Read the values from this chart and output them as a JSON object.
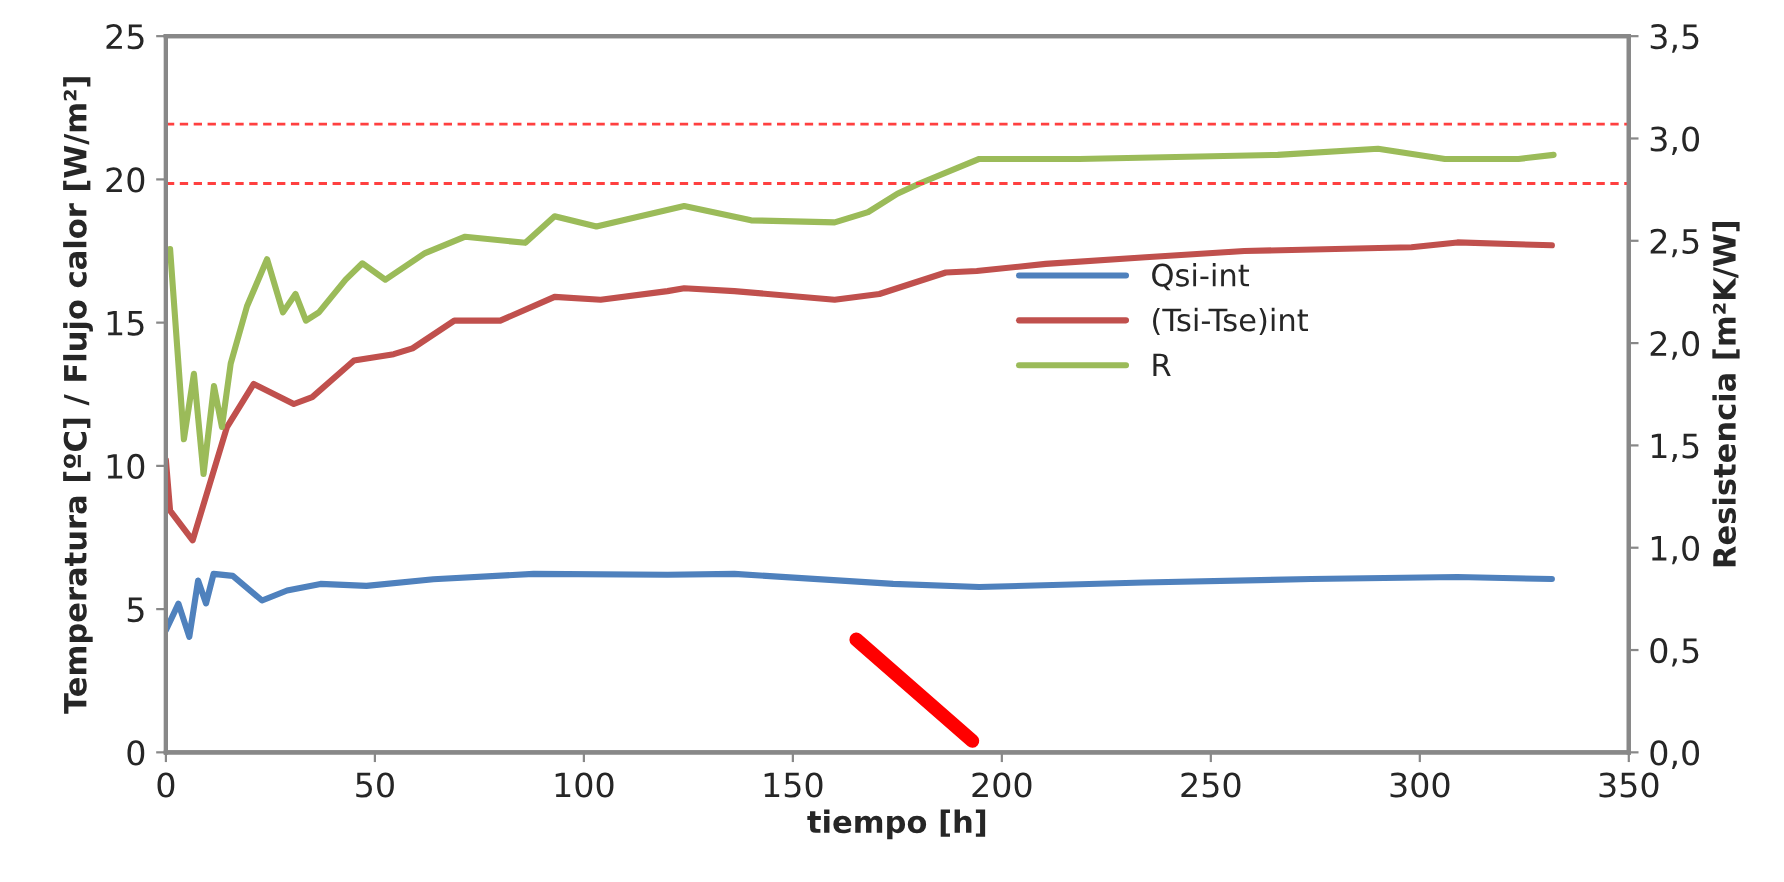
{
  "chart_data": {
    "type": "line",
    "xlabel": "tiempo [h]",
    "ylabel": "Temperatura [ºC] / Flujo calor [W/m²]",
    "y2label": "Resistencia [m²K/W]",
    "xlim": [
      0,
      350
    ],
    "xticks": [
      0,
      50,
      100,
      150,
      200,
      250,
      300,
      350
    ],
    "ylim": [
      0,
      25
    ],
    "yticks": [
      0,
      5,
      10,
      15,
      20,
      25
    ],
    "y2lim": [
      0,
      3.5
    ],
    "y2ticks": [
      {
        "value": 0,
        "label": "0,0"
      },
      {
        "value": 0.5,
        "label": "0,5"
      },
      {
        "value": 1,
        "label": "1,0"
      },
      {
        "value": 1.5,
        "label": "1,5"
      },
      {
        "value": 2,
        "label": "2,0"
      },
      {
        "value": 2.5,
        "label": "2,5"
      },
      {
        "value": 3,
        "label": "3,0"
      },
      {
        "value": 3.5,
        "label": "3,5"
      }
    ],
    "grid": false,
    "legend": "right",
    "line_style": "solid",
    "marker": "none",
    "series": [
      {
        "name": "Qsi-int",
        "color": "#4f81bd",
        "x": [
          0,
          3,
          5.6,
          7.7,
          9.6,
          11.4,
          16,
          23,
          29,
          37,
          48,
          64,
          88,
          120,
          136,
          174,
          194.6,
          234,
          274,
          309,
          331.6
        ],
        "values": [
          4.26,
          5.19,
          4.03,
          6.0,
          5.2,
          6.23,
          6.16,
          5.3,
          5.65,
          5.88,
          5.81,
          6.04,
          6.23,
          6.2,
          6.23,
          5.88,
          5.77,
          5.93,
          6.05,
          6.12,
          6.05
        ]
      },
      {
        "name": "(Tsi-Tse)int",
        "color": "#c0504d",
        "x": [
          0,
          1,
          6.4,
          14.6,
          21,
          30.6,
          35,
          45,
          54.5,
          59,
          69,
          80,
          93,
          104,
          120,
          124,
          136,
          160,
          170.7,
          186.6,
          194,
          210.5,
          234.4,
          258,
          298,
          309,
          331.6
        ],
        "values": [
          10.2,
          8.44,
          7.4,
          11.35,
          12.86,
          12.16,
          12.4,
          13.68,
          13.9,
          14.1,
          15.07,
          15.07,
          15.9,
          15.8,
          16.1,
          16.2,
          16.1,
          15.8,
          16.0,
          16.75,
          16.8,
          17.05,
          17.28,
          17.5,
          17.63,
          17.8,
          17.7
        ]
      },
      {
        "name": "R",
        "color": "#9bbb59",
        "axis": "y2",
        "x": [
          1,
          4.3,
          6.7,
          9,
          11.5,
          13.4,
          15.5,
          19.4,
          24.2,
          28,
          31,
          33.5,
          36.6,
          43,
          47,
          52.5,
          62,
          71.6,
          86,
          93,
          103,
          124,
          140,
          160,
          168,
          175,
          180.3,
          194.6,
          218.5,
          266,
          290,
          306,
          323.6,
          332
        ],
        "values": [
          2.46,
          1.53,
          1.85,
          1.36,
          1.79,
          1.59,
          1.9,
          2.18,
          2.41,
          2.15,
          2.24,
          2.11,
          2.15,
          2.31,
          2.39,
          2.31,
          2.44,
          2.52,
          2.49,
          2.62,
          2.57,
          2.67,
          2.6,
          2.59,
          2.64,
          2.73,
          2.78,
          2.9,
          2.9,
          2.92,
          2.95,
          2.9,
          2.9,
          2.92
        ]
      }
    ],
    "ref_lines": [
      {
        "axis": "y2",
        "value": 3.07,
        "color": "#ff4040",
        "line_style": "dashed"
      },
      {
        "axis": "y2",
        "value": 2.78,
        "color": "#ff4040",
        "line_style": "dashed"
      }
    ]
  }
}
